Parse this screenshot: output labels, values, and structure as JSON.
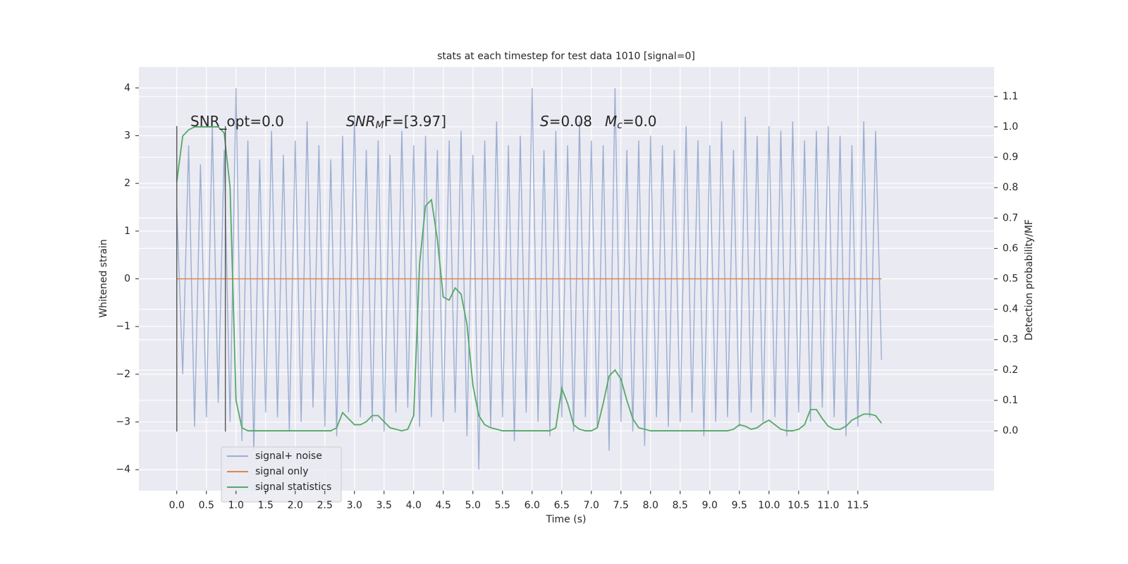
{
  "chart_data": {
    "type": "line",
    "title": "stats at each timestep for test data 1010 [signal=0]",
    "x_label": "Time (s)",
    "y_label": "Whitened strain",
    "y2_label": "Detection probability/MF",
    "annotations": [
      {
        "parts": [
          "SNR_opt=0.0"
        ]
      },
      {
        "parts": [
          "SNR",
          "M",
          "F=[3.97]"
        ]
      },
      {
        "parts": [
          "S",
          "=0.08"
        ]
      },
      {
        "parts": [
          "M",
          "c",
          "=0.0"
        ]
      }
    ],
    "x": [
      0,
      0.1,
      0.2,
      0.3,
      0.4,
      0.5,
      0.6,
      0.7,
      0.8,
      0.9,
      1,
      1.1,
      1.2,
      1.3,
      1.4,
      1.5,
      1.6,
      1.7,
      1.8,
      1.9,
      2,
      2.1,
      2.2,
      2.3,
      2.4,
      2.5,
      2.6,
      2.7,
      2.8,
      2.9,
      3,
      3.1,
      3.2,
      3.3,
      3.4,
      3.5,
      3.6,
      3.7,
      3.8,
      3.9,
      4,
      4.1,
      4.2,
      4.3,
      4.4,
      4.5,
      4.6,
      4.7,
      4.8,
      4.9,
      5,
      5.1,
      5.2,
      5.3,
      5.4,
      5.5,
      5.6,
      5.7,
      5.8,
      5.9,
      6,
      6.1,
      6.2,
      6.3,
      6.4,
      6.5,
      6.6,
      6.7,
      6.8,
      6.9,
      7,
      7.1,
      7.2,
      7.3,
      7.4,
      7.5,
      7.6,
      7.7,
      7.8,
      7.9,
      8,
      8.1,
      8.2,
      8.3,
      8.4,
      8.5,
      8.6,
      8.7,
      8.8,
      8.9,
      9,
      9.1,
      9.2,
      9.3,
      9.4,
      9.5,
      9.6,
      9.7,
      9.8,
      9.9,
      10,
      10.1,
      10.2,
      10.3,
      10.4,
      10.5,
      10.6,
      10.7,
      10.8,
      10.9,
      11,
      11.1,
      11.2,
      11.3,
      11.4,
      11.5,
      11.6,
      11.7,
      11.8,
      11.9
    ],
    "series": [
      {
        "name": "signal+ noise",
        "color": "#4c72b0",
        "opacity": 0.5,
        "values": [
          1.5,
          -2.0,
          2.8,
          -3.1,
          2.4,
          -2.9,
          3.2,
          -2.6,
          2.7,
          -3.0,
          4.0,
          -3.4,
          2.9,
          -3.6,
          2.5,
          -2.8,
          3.1,
          -2.9,
          2.6,
          -3.2,
          2.9,
          -3.0,
          3.3,
          -2.7,
          2.8,
          -3.1,
          2.5,
          -3.3,
          3.0,
          -2.8,
          3.4,
          -2.9,
          2.7,
          -3.0,
          2.9,
          -3.2,
          2.6,
          -2.8,
          3.1,
          -2.7,
          2.8,
          -3.1,
          3.0,
          -2.9,
          2.7,
          -3.0,
          2.9,
          -2.8,
          3.1,
          -3.3,
          2.6,
          -4.0,
          2.9,
          -3.1,
          3.3,
          -2.9,
          2.8,
          -3.4,
          3.0,
          -2.8,
          4.0,
          -3.0,
          2.7,
          -3.3,
          3.1,
          -2.9,
          2.8,
          -3.2,
          3.3,
          -2.9,
          2.9,
          -3.1,
          2.8,
          -3.6,
          4.0,
          -3.0,
          2.7,
          -3.2,
          2.9,
          -3.5,
          3.0,
          -2.9,
          2.8,
          -3.1,
          2.7,
          -3.0,
          3.2,
          -2.8,
          2.9,
          -3.3,
          2.8,
          -3.0,
          3.3,
          -2.9,
          2.7,
          -3.1,
          3.4,
          -2.8,
          3.0,
          -3.0,
          3.2,
          -2.9,
          3.1,
          -3.3,
          3.3,
          -2.8,
          2.9,
          -3.0,
          3.1,
          -2.7,
          3.2,
          -2.9,
          3.0,
          -3.3,
          2.8,
          -3.1,
          3.3,
          -2.9,
          3.1,
          -1.7
        ]
      },
      {
        "name": "signal only",
        "color": "#dd8452",
        "opacity": 1,
        "values": [
          0,
          0,
          0,
          0,
          0,
          0,
          0,
          0,
          0,
          0,
          0,
          0,
          0,
          0,
          0,
          0,
          0,
          0,
          0,
          0,
          0,
          0,
          0,
          0,
          0,
          0,
          0,
          0,
          0,
          0,
          0,
          0,
          0,
          0,
          0,
          0,
          0,
          0,
          0,
          0,
          0,
          0,
          0,
          0,
          0,
          0,
          0,
          0,
          0,
          0,
          0,
          0,
          0,
          0,
          0,
          0,
          0,
          0,
          0,
          0,
          0,
          0,
          0,
          0,
          0,
          0,
          0,
          0,
          0,
          0,
          0,
          0,
          0,
          0,
          0,
          0,
          0,
          0,
          0,
          0,
          0,
          0,
          0,
          0,
          0,
          0,
          0,
          0,
          0,
          0,
          0,
          0,
          0,
          0,
          0,
          0,
          0,
          0,
          0,
          0,
          0,
          0,
          0,
          0,
          0,
          0,
          0,
          0,
          0,
          0,
          0,
          0,
          0,
          0,
          0,
          0,
          0,
          0,
          0,
          0
        ]
      },
      {
        "name": "signal statistics",
        "color": "#55a868",
        "opacity": 1,
        "axis": "y2",
        "values": [
          0.82,
          0.97,
          0.99,
          1.0,
          1.0,
          1.0,
          1.0,
          1.0,
          0.98,
          0.8,
          0.1,
          0.01,
          0.0,
          0.0,
          0.0,
          0.0,
          0.0,
          0.0,
          0.0,
          0.0,
          0.0,
          0.0,
          0.0,
          0.0,
          0.0,
          0.0,
          0.0,
          0.01,
          0.06,
          0.04,
          0.02,
          0.02,
          0.03,
          0.05,
          0.05,
          0.03,
          0.01,
          0.005,
          0.0,
          0.005,
          0.05,
          0.55,
          0.74,
          0.76,
          0.63,
          0.44,
          0.43,
          0.47,
          0.45,
          0.35,
          0.15,
          0.05,
          0.02,
          0.01,
          0.005,
          0.0,
          0.0,
          0.0,
          0.0,
          0.0,
          0.0,
          0.0,
          0.0,
          0.0,
          0.01,
          0.14,
          0.09,
          0.02,
          0.005,
          0.0,
          0.0,
          0.01,
          0.09,
          0.18,
          0.2,
          0.17,
          0.1,
          0.04,
          0.01,
          0.005,
          0.0,
          0.0,
          0.0,
          0.0,
          0.0,
          0.0,
          0.0,
          0.0,
          0.0,
          0.0,
          0.0,
          0.0,
          0.0,
          0.0,
          0.005,
          0.02,
          0.015,
          0.005,
          0.01,
          0.025,
          0.035,
          0.02,
          0.005,
          0.0,
          0.0,
          0.005,
          0.02,
          0.07,
          0.07,
          0.04,
          0.015,
          0.005,
          0.005,
          0.015,
          0.035,
          0.045,
          0.055,
          0.055,
          0.05,
          0.025
        ]
      }
    ],
    "vlines": [
      {
        "x": 0,
        "ymin": -3.2,
        "ymax": 3.2
      },
      {
        "x": 0.82,
        "ymin": -3.2,
        "ymax": 3.2
      }
    ],
    "vline_color": "#555555",
    "xlim": [
      -0.64,
      13.8
    ],
    "ylim": [
      -4.44,
      4.44
    ],
    "y2lim": [
      -0.197,
      1.197
    ],
    "xticks": [
      {
        "value": 0,
        "label": "0.0"
      },
      {
        "value": 0.5,
        "label": "0.5"
      },
      {
        "value": 1,
        "label": "1.0"
      },
      {
        "value": 1.5,
        "label": "1.5"
      },
      {
        "value": 2,
        "label": "2.0"
      },
      {
        "value": 2.5,
        "label": "2.5"
      },
      {
        "value": 3,
        "label": "3.0"
      },
      {
        "value": 3.5,
        "label": "3.5"
      },
      {
        "value": 4,
        "label": "4.0"
      },
      {
        "value": 4.5,
        "label": "4.5"
      },
      {
        "value": 5,
        "label": "5.0"
      },
      {
        "value": 5.5,
        "label": "5.5"
      },
      {
        "value": 6,
        "label": "6.0"
      },
      {
        "value": 6.5,
        "label": "6.5"
      },
      {
        "value": 7,
        "label": "7.0"
      },
      {
        "value": 7.5,
        "label": "7.5"
      },
      {
        "value": 8,
        "label": "8.0"
      },
      {
        "value": 8.5,
        "label": "8.5"
      },
      {
        "value": 9,
        "label": "9.0"
      },
      {
        "value": 9.5,
        "label": "9.5"
      },
      {
        "value": 10,
        "label": "10.0"
      },
      {
        "value": 10.5,
        "label": "10.5"
      },
      {
        "value": 11,
        "label": "11.0"
      },
      {
        "value": 11.5,
        "label": "11.5"
      }
    ],
    "yticks": [
      {
        "value": -4,
        "label": "−4"
      },
      {
        "value": -3,
        "label": "−3"
      },
      {
        "value": -2,
        "label": "−2"
      },
      {
        "value": -1,
        "label": "−1"
      },
      0,
      1,
      2,
      3,
      4
    ],
    "y2ticks": [
      {
        "value": 0,
        "label": "0.0"
      },
      {
        "value": 0.1,
        "label": "0.1"
      },
      {
        "value": 0.2,
        "label": "0.2"
      },
      {
        "value": 0.3,
        "label": "0.3"
      },
      {
        "value": 0.4,
        "label": "0.4"
      },
      {
        "value": 0.5,
        "label": "0.5"
      },
      {
        "value": 0.6,
        "label": "0.6"
      },
      {
        "value": 0.7,
        "label": "0.7"
      },
      {
        "value": 0.8,
        "label": "0.8"
      },
      {
        "value": 0.9,
        "label": "0.9"
      },
      {
        "value": 1,
        "label": "1.0"
      },
      {
        "value": 1.1,
        "label": "1.1"
      }
    ],
    "grid": true,
    "legend": "lower left"
  }
}
